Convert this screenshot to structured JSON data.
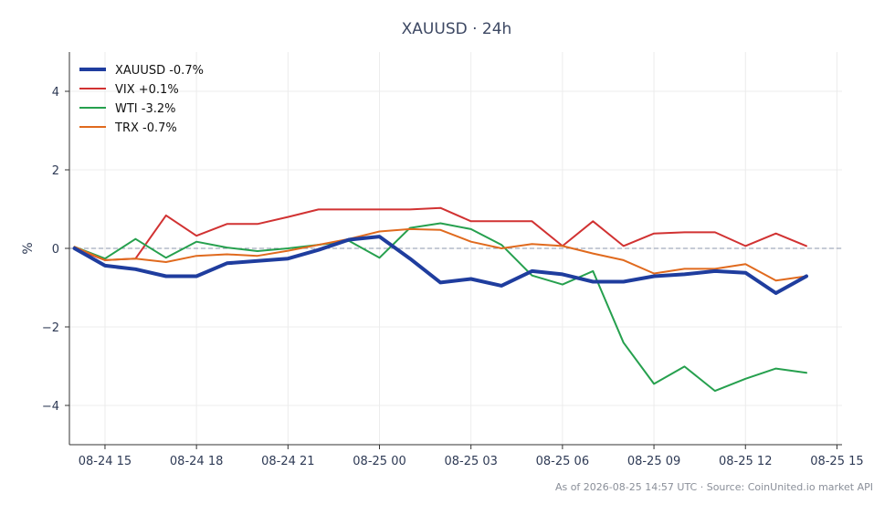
{
  "chart_data": {
    "type": "line",
    "title": "XAUUSD · 24h",
    "xlabel": "",
    "ylabel": "%",
    "footer": "As of 2026-08-25 14:57 UTC · Source: CoinUnited.io market API",
    "x_ticks": [
      "08-24 15",
      "08-24 18",
      "08-24 21",
      "08-25 00",
      "08-25 03",
      "08-25 06",
      "08-25 09",
      "08-25 12",
      "08-25 15"
    ],
    "y_ticks": [
      "4",
      "2",
      "0",
      "−2",
      "−4"
    ],
    "y_tick_values": [
      4,
      2,
      0,
      -2,
      -4
    ],
    "ylim": [
      -5,
      5
    ],
    "xlim": [
      "2026-08-24 13:50",
      "2026-08-25 15:10"
    ],
    "grid": true,
    "zero_line": true,
    "legend_position": "top-left",
    "x": [
      "2026-08-24 14:00",
      "2026-08-24 15:00",
      "2026-08-24 16:00",
      "2026-08-24 17:00",
      "2026-08-24 18:00",
      "2026-08-24 19:00",
      "2026-08-24 20:00",
      "2026-08-24 21:00",
      "2026-08-24 22:00",
      "2026-08-24 23:00",
      "2026-08-25 00:00",
      "2026-08-25 01:00",
      "2026-08-25 02:00",
      "2026-08-25 03:00",
      "2026-08-25 04:00",
      "2026-08-25 05:00",
      "2026-08-25 06:00",
      "2026-08-25 07:00",
      "2026-08-25 08:00",
      "2026-08-25 09:00",
      "2026-08-25 10:00",
      "2026-08-25 11:00",
      "2026-08-25 12:00",
      "2026-08-25 13:00",
      "2026-08-25 14:00"
    ],
    "series": [
      {
        "name": "XAUUSD -0.7%",
        "color": "#1f3d9e",
        "width": 4,
        "values": [
          0.0,
          -0.44,
          -0.53,
          -0.71,
          -0.71,
          -0.38,
          -0.32,
          -0.26,
          -0.04,
          0.22,
          0.3,
          -0.26,
          -0.87,
          -0.78,
          -0.95,
          -0.58,
          -0.66,
          -0.85,
          -0.85,
          -0.71,
          -0.66,
          -0.58,
          -0.62,
          -1.14,
          -0.71
        ]
      },
      {
        "name": "VIX +0.1%",
        "color": "#d13232",
        "width": 2,
        "values": [
          0.0,
          -0.3,
          -0.26,
          0.84,
          0.32,
          0.62,
          0.62,
          0.8,
          0.99,
          0.99,
          0.99,
          0.99,
          1.03,
          0.69,
          0.69,
          0.69,
          0.06,
          0.69,
          0.06,
          0.38,
          0.41,
          0.41,
          0.06,
          0.38,
          0.06
        ]
      },
      {
        "name": "WTI -3.2%",
        "color": "#26a04e",
        "width": 2,
        "values": [
          0.04,
          -0.26,
          0.24,
          -0.24,
          0.17,
          0.02,
          -0.07,
          0.0,
          0.09,
          0.19,
          -0.24,
          0.52,
          0.64,
          0.49,
          0.09,
          -0.69,
          -0.92,
          -0.58,
          -2.4,
          -3.45,
          -3.01,
          -3.63,
          -3.32,
          -3.06,
          -3.17
        ]
      },
      {
        "name": "TRX -0.7%",
        "color": "#e06a1e",
        "width": 2,
        "values": [
          0.04,
          -0.3,
          -0.26,
          -0.35,
          -0.19,
          -0.15,
          -0.19,
          -0.06,
          0.09,
          0.24,
          0.43,
          0.49,
          0.47,
          0.17,
          0.0,
          0.11,
          0.06,
          -0.13,
          -0.3,
          -0.64,
          -0.52,
          -0.52,
          -0.4,
          -0.82,
          -0.71
        ]
      }
    ]
  }
}
